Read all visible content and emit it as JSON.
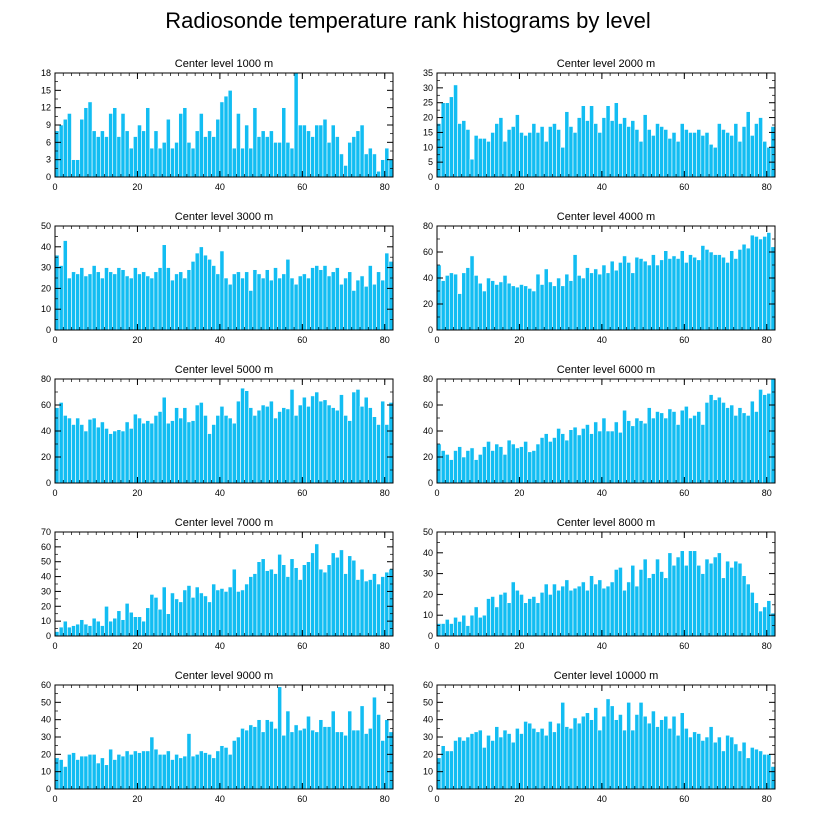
{
  "title": "Radiosonde temperature rank histograms by level",
  "colors": {
    "bar": "#12BDF2",
    "bar_edge": "#ffffff",
    "axis": "#000000"
  },
  "chart_data": [
    {
      "type": "bar",
      "title": "Center level 1000 m",
      "xlim": [
        0,
        82
      ],
      "ylim": [
        0,
        18
      ],
      "xticks": [
        0,
        20,
        40,
        60,
        80
      ],
      "yticks": [
        0,
        3,
        6,
        9,
        12,
        15,
        18
      ],
      "values": [
        8,
        9,
        10,
        11,
        3,
        3,
        10,
        12,
        13,
        8,
        7,
        8,
        7,
        11,
        12,
        7,
        11,
        8,
        5,
        7,
        9,
        8,
        12,
        5,
        8,
        5,
        6,
        10,
        5,
        6,
        11,
        12,
        6,
        5,
        8,
        11,
        7,
        8,
        7,
        10,
        13,
        14,
        15,
        5,
        11,
        5,
        9,
        5,
        12,
        7,
        8,
        7,
        8,
        6,
        6,
        12,
        6,
        5,
        18,
        9,
        9,
        8,
        7,
        9,
        9,
        10,
        6,
        9,
        7,
        4,
        2,
        6,
        7,
        8,
        9,
        4,
        5,
        4,
        1,
        3,
        5,
        3
      ]
    },
    {
      "type": "bar",
      "title": "Center level 2000 m",
      "xlim": [
        0,
        82
      ],
      "ylim": [
        0,
        35
      ],
      "xticks": [
        0,
        20,
        40,
        60,
        80
      ],
      "yticks": [
        0,
        5,
        10,
        15,
        20,
        25,
        30,
        35
      ],
      "values": [
        18,
        25,
        25,
        27,
        31,
        18,
        19,
        16,
        6,
        14,
        13,
        13,
        12,
        15,
        18,
        20,
        12,
        16,
        17,
        21,
        15,
        14,
        15,
        18,
        15,
        17,
        12,
        17,
        18,
        16,
        10,
        22,
        17,
        15,
        20,
        24,
        19,
        24,
        18,
        15,
        20,
        24,
        19,
        25,
        18,
        20,
        17,
        19,
        16,
        12,
        21,
        16,
        14,
        18,
        17,
        16,
        13,
        15,
        12,
        18,
        16,
        15,
        15,
        16,
        14,
        15,
        11,
        10,
        18,
        16,
        15,
        14,
        18,
        12,
        17,
        22,
        14,
        18,
        20,
        12,
        10,
        17
      ]
    },
    {
      "type": "bar",
      "title": "Center level 3000 m",
      "xlim": [
        0,
        82
      ],
      "ylim": [
        0,
        50
      ],
      "xticks": [
        0,
        20,
        40,
        60,
        80
      ],
      "yticks": [
        0,
        10,
        20,
        30,
        40,
        50
      ],
      "values": [
        36,
        31,
        43,
        25,
        28,
        27,
        30,
        26,
        27,
        31,
        28,
        25,
        30,
        28,
        27,
        30,
        29,
        26,
        25,
        30,
        27,
        28,
        26,
        25,
        28,
        30,
        41,
        30,
        24,
        27,
        28,
        25,
        29,
        33,
        37,
        40,
        36,
        34,
        31,
        27,
        38,
        25,
        22,
        27,
        28,
        25,
        28,
        19,
        29,
        27,
        25,
        29,
        24,
        30,
        25,
        27,
        34,
        25,
        22,
        26,
        27,
        25,
        30,
        31,
        29,
        31,
        26,
        28,
        30,
        22,
        25,
        28,
        19,
        24,
        26,
        21,
        31,
        22,
        28,
        24,
        37,
        33
      ]
    },
    {
      "type": "bar",
      "title": "Center level 4000 m",
      "xlim": [
        0,
        82
      ],
      "ylim": [
        0,
        80
      ],
      "xticks": [
        0,
        20,
        40,
        60,
        80
      ],
      "yticks": [
        0,
        20,
        40,
        60,
        80
      ],
      "values": [
        50,
        38,
        42,
        44,
        43,
        28,
        44,
        48,
        57,
        42,
        36,
        30,
        40,
        38,
        35,
        37,
        42,
        36,
        34,
        33,
        35,
        34,
        32,
        30,
        43,
        35,
        47,
        37,
        34,
        40,
        34,
        43,
        38,
        58,
        42,
        40,
        48,
        44,
        47,
        43,
        50,
        44,
        53,
        46,
        52,
        57,
        52,
        44,
        56,
        55,
        53,
        50,
        58,
        50,
        54,
        61,
        55,
        57,
        55,
        61,
        52,
        58,
        56,
        54,
        65,
        62,
        60,
        58,
        58,
        56,
        52,
        61,
        55,
        62,
        66,
        63,
        73,
        72,
        70,
        72,
        75,
        64
      ]
    },
    {
      "type": "bar",
      "title": "Center level 5000 m",
      "xlim": [
        0,
        82
      ],
      "ylim": [
        0,
        80
      ],
      "xticks": [
        0,
        20,
        40,
        60,
        80
      ],
      "yticks": [
        0,
        20,
        40,
        60,
        80
      ],
      "values": [
        58,
        62,
        52,
        50,
        45,
        50,
        45,
        40,
        49,
        50,
        43,
        47,
        42,
        38,
        40,
        41,
        40,
        47,
        42,
        53,
        50,
        46,
        48,
        46,
        52,
        55,
        66,
        46,
        48,
        58,
        50,
        58,
        47,
        48,
        60,
        62,
        52,
        38,
        45,
        52,
        59,
        52,
        50,
        46,
        63,
        73,
        71,
        58,
        52,
        56,
        60,
        59,
        63,
        50,
        55,
        58,
        57,
        72,
        52,
        60,
        66,
        59,
        67,
        70,
        63,
        64,
        60,
        58,
        56,
        68,
        52,
        48,
        70,
        72,
        59,
        66,
        58,
        51,
        45,
        63,
        45,
        62
      ]
    },
    {
      "type": "bar",
      "title": "Center level 6000 m",
      "xlim": [
        0,
        82
      ],
      "ylim": [
        0,
        80
      ],
      "xticks": [
        0,
        20,
        40,
        60,
        80
      ],
      "yticks": [
        0,
        20,
        40,
        60,
        80
      ],
      "values": [
        30,
        25,
        22,
        18,
        25,
        28,
        20,
        25,
        27,
        18,
        22,
        28,
        32,
        25,
        30,
        28,
        22,
        33,
        30,
        27,
        28,
        32,
        24,
        25,
        30,
        35,
        38,
        32,
        35,
        42,
        38,
        33,
        41,
        43,
        37,
        42,
        45,
        38,
        47,
        40,
        50,
        40,
        40,
        47,
        39,
        56,
        48,
        44,
        50,
        48,
        46,
        58,
        50,
        55,
        54,
        50,
        57,
        55,
        45,
        56,
        59,
        50,
        52,
        55,
        45,
        62,
        68,
        64,
        66,
        62,
        58,
        60,
        52,
        58,
        54,
        52,
        63,
        55,
        72,
        68,
        69,
        80
      ]
    },
    {
      "type": "bar",
      "title": "Center level 7000 m",
      "xlim": [
        0,
        82
      ],
      "ylim": [
        0,
        70
      ],
      "xticks": [
        0,
        20,
        40,
        60,
        80
      ],
      "yticks": [
        0,
        10,
        20,
        30,
        40,
        50,
        60,
        70
      ],
      "values": [
        3,
        6,
        10,
        6,
        7,
        8,
        11,
        8,
        7,
        12,
        10,
        7,
        20,
        10,
        12,
        17,
        11,
        22,
        16,
        13,
        13,
        10,
        19,
        28,
        26,
        18,
        33,
        15,
        29,
        25,
        23,
        31,
        34,
        26,
        33,
        29,
        27,
        23,
        35,
        31,
        32,
        30,
        33,
        45,
        30,
        31,
        35,
        40,
        42,
        50,
        52,
        44,
        45,
        42,
        55,
        48,
        40,
        52,
        46,
        38,
        48,
        50,
        56,
        62,
        45,
        43,
        48,
        56,
        53,
        58,
        42,
        54,
        51,
        38,
        45,
        37,
        38,
        42,
        35,
        40,
        43,
        45
      ]
    },
    {
      "type": "bar",
      "title": "Center level 8000 m",
      "xlim": [
        0,
        82
      ],
      "ylim": [
        0,
        50
      ],
      "xticks": [
        0,
        20,
        40,
        60,
        80
      ],
      "yticks": [
        0,
        10,
        20,
        30,
        40,
        50
      ],
      "values": [
        6,
        6,
        8,
        6,
        9,
        7,
        10,
        5,
        10,
        14,
        9,
        10,
        18,
        19,
        14,
        20,
        21,
        16,
        26,
        22,
        20,
        16,
        18,
        19,
        16,
        21,
        25,
        20,
        25,
        22,
        24,
        27,
        22,
        23,
        24,
        26,
        22,
        29,
        25,
        27,
        23,
        24,
        26,
        32,
        33,
        22,
        26,
        34,
        24,
        32,
        37,
        28,
        30,
        37,
        31,
        28,
        40,
        34,
        38,
        41,
        34,
        41,
        41,
        34,
        30,
        37,
        35,
        38,
        40,
        28,
        36,
        33,
        36,
        35,
        29,
        25,
        21,
        16,
        12,
        14,
        17,
        11
      ]
    },
    {
      "type": "bar",
      "title": "Center level 9000 m",
      "xlim": [
        0,
        82
      ],
      "ylim": [
        0,
        60
      ],
      "xticks": [
        0,
        20,
        40,
        60,
        80
      ],
      "yticks": [
        0,
        10,
        20,
        30,
        40,
        50,
        60
      ],
      "values": [
        18,
        17,
        13,
        20,
        21,
        17,
        19,
        19,
        20,
        20,
        15,
        18,
        14,
        23,
        17,
        20,
        19,
        22,
        20,
        22,
        21,
        22,
        22,
        30,
        23,
        20,
        20,
        22,
        17,
        20,
        18,
        19,
        32,
        19,
        20,
        22,
        21,
        20,
        18,
        22,
        25,
        24,
        20,
        28,
        30,
        35,
        34,
        37,
        36,
        40,
        33,
        40,
        39,
        35,
        59,
        31,
        45,
        33,
        37,
        34,
        35,
        42,
        34,
        33,
        40,
        36,
        36,
        45,
        33,
        33,
        31,
        45,
        34,
        34,
        48,
        32,
        35,
        53,
        43,
        28,
        40,
        33
      ]
    },
    {
      "type": "bar",
      "title": "Center level 10000 m",
      "xlim": [
        0,
        82
      ],
      "ylim": [
        0,
        60
      ],
      "xticks": [
        0,
        20,
        40,
        60,
        80
      ],
      "yticks": [
        0,
        10,
        20,
        30,
        40,
        50,
        60
      ],
      "values": [
        18,
        25,
        22,
        22,
        28,
        30,
        28,
        30,
        32,
        33,
        34,
        24,
        31,
        28,
        36,
        30,
        34,
        32,
        27,
        35,
        32,
        39,
        38,
        35,
        33,
        35,
        31,
        39,
        33,
        38,
        50,
        36,
        35,
        41,
        38,
        42,
        44,
        40,
        47,
        34,
        42,
        52,
        48,
        40,
        43,
        34,
        50,
        34,
        43,
        50,
        42,
        38,
        45,
        36,
        40,
        42,
        35,
        42,
        31,
        44,
        35,
        30,
        33,
        32,
        28,
        30,
        36,
        27,
        30,
        22,
        31,
        30,
        26,
        22,
        27,
        18,
        24,
        23,
        22,
        20,
        20,
        13
      ]
    }
  ]
}
